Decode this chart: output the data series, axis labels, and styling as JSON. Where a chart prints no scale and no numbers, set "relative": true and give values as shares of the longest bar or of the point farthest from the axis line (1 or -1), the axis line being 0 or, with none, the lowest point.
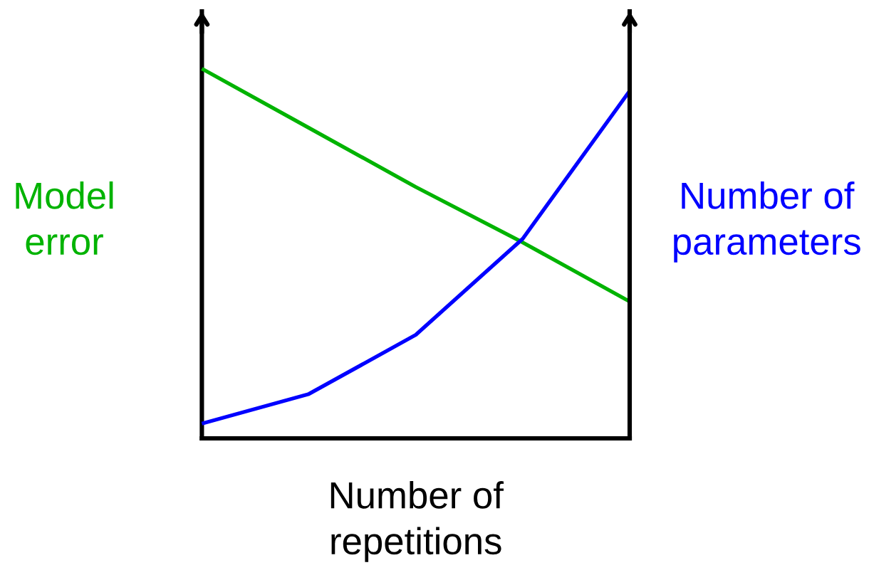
{
  "chart_data": {
    "type": "line",
    "relative": true,
    "xlabel": "Number of\nrepetitions",
    "ylabel": "Model\nerror",
    "y2label": "Number of\nparameters",
    "categories": [
      null,
      null,
      null,
      null,
      null
    ],
    "series": [
      {
        "color": "#00b300",
        "values": [
          1,
          0.84,
          0.68,
          0.53,
          0.37
        ]
      },
      {
        "color": "#0000ff",
        "values": [
          0.04,
          0.12,
          0.28,
          0.54,
          0.94
        ]
      }
    ]
  }
}
